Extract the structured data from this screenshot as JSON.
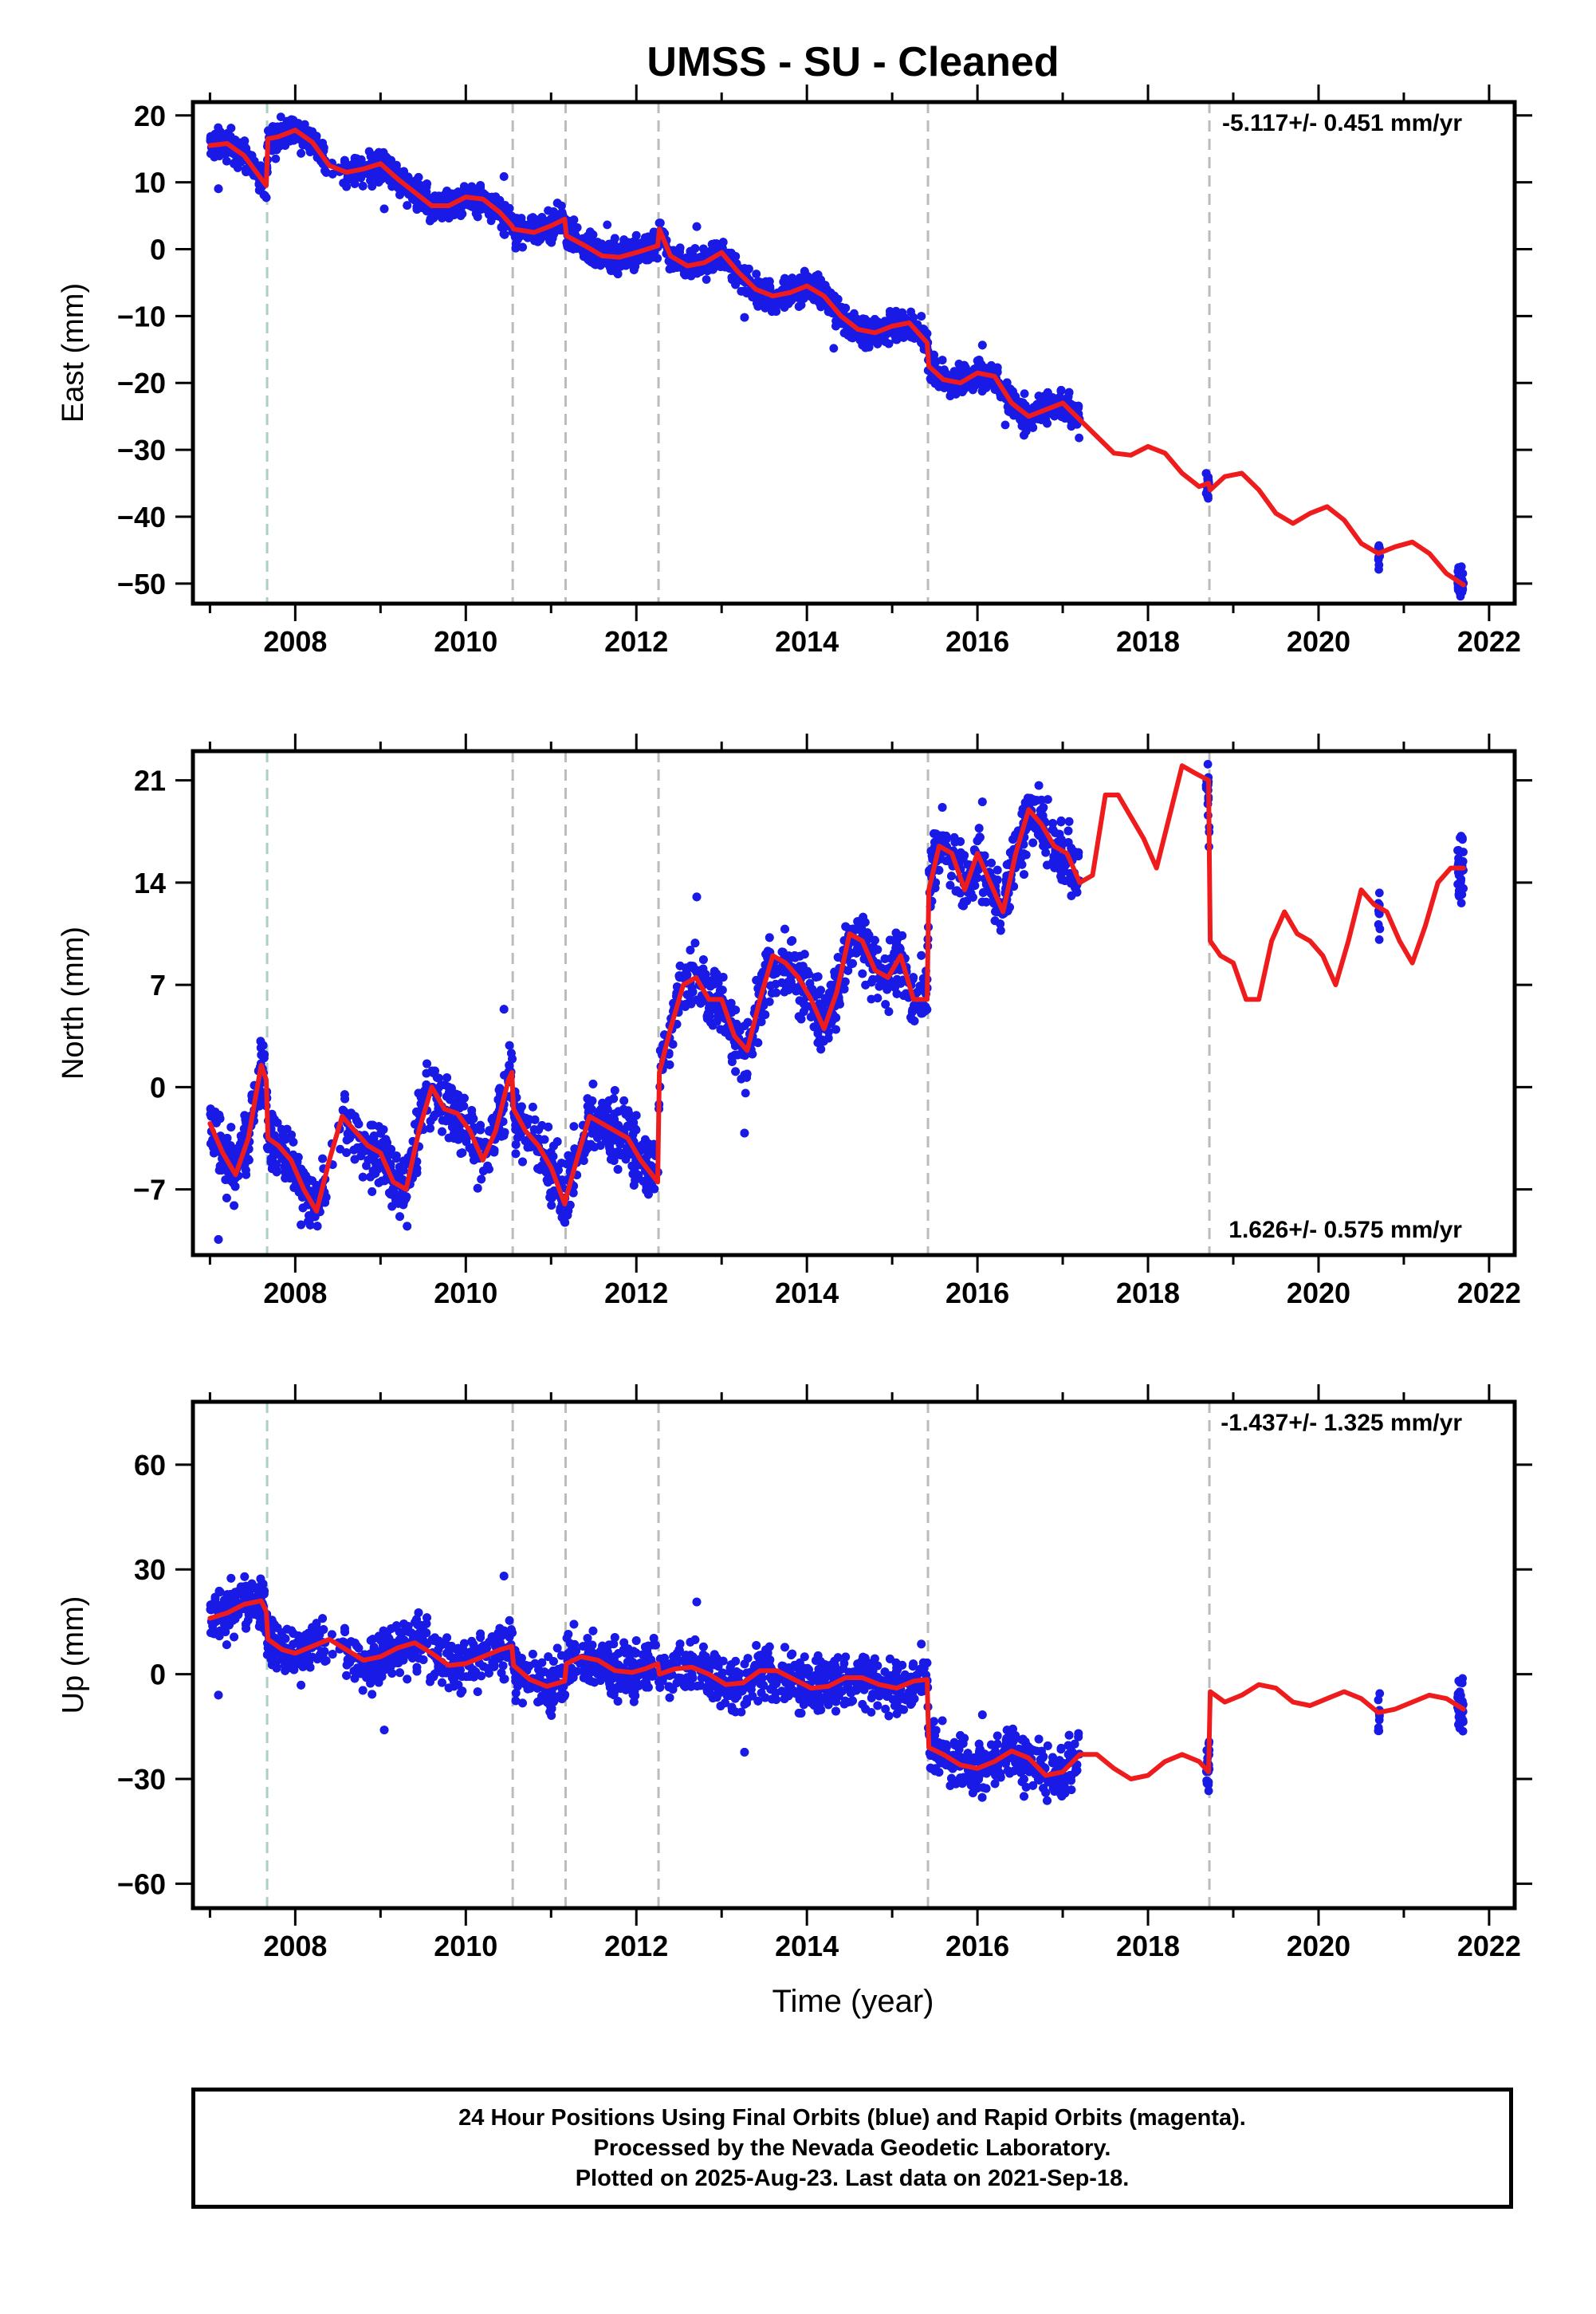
{
  "title": "UMSS  - SU - Cleaned",
  "xlabel": "Time (year)",
  "footer": {
    "line1": "24 Hour Positions Using Final Orbits (blue) and Rapid Orbits (magenta).",
    "line2": "Processed by the Nevada Geodetic Laboratory.",
    "line3": "Plotted on 2025-Aug-23. Last data on 2021-Sep-18."
  },
  "colors": {
    "data": "#1a1ae6",
    "model": "#ee1c1c",
    "step_line": "#bbbbbb",
    "step_line_equip": "#a9cfc6"
  },
  "chart_data": [
    {
      "type": "scatter",
      "id": "east",
      "ylabel": "East (mm)",
      "rate": "-5.117+/- 0.451 mm/yr",
      "rate_position": "top-right",
      "xlim": [
        2006.8,
        2022.3
      ],
      "ylim": [
        -53,
        22
      ],
      "yticks": [
        -50,
        -40,
        -30,
        -20,
        -10,
        0,
        10,
        20
      ],
      "xticks": [
        2008,
        2010,
        2012,
        2014,
        2016,
        2018,
        2020,
        2022
      ],
      "breaks": [
        2007.67,
        2010.55,
        2011.17,
        2012.26,
        2015.42,
        2018.72
      ],
      "series": [
        {
          "role": "model",
          "x": [
            2007.0,
            2007.2,
            2007.4,
            2007.66,
            2007.68,
            2007.8,
            2008.0,
            2008.2,
            2008.4,
            2008.6,
            2008.8,
            2009.0,
            2009.2,
            2009.4,
            2009.6,
            2009.8,
            2010.0,
            2010.2,
            2010.4,
            2010.54,
            2010.56,
            2010.8,
            2011.0,
            2011.16,
            2011.18,
            2011.4,
            2011.6,
            2011.8,
            2012.0,
            2012.25,
            2012.27,
            2012.4,
            2012.6,
            2012.8,
            2013.0,
            2013.2,
            2013.4,
            2013.6,
            2013.8,
            2014.0,
            2014.2,
            2014.4,
            2014.6,
            2014.8,
            2015.0,
            2015.2,
            2015.41,
            2015.43,
            2015.6,
            2015.8,
            2016.0,
            2016.2,
            2016.4,
            2016.6,
            2016.8,
            2017.0,
            2017.2,
            2017.4,
            2017.6,
            2017.8,
            2018.0,
            2018.2,
            2018.4,
            2018.6,
            2018.71,
            2018.73,
            2018.9,
            2019.1,
            2019.3,
            2019.5,
            2019.7,
            2019.9,
            2020.1,
            2020.3,
            2020.5,
            2020.7,
            2020.9,
            2021.1,
            2021.3,
            2021.5,
            2021.7
          ],
          "y": [
            15.5,
            15.8,
            14.0,
            9.5,
            16.5,
            16.8,
            17.8,
            16.0,
            12.5,
            11.5,
            12.0,
            12.8,
            10.5,
            8.5,
            6.5,
            6.5,
            7.8,
            7.5,
            5.5,
            3.5,
            3.0,
            2.5,
            3.5,
            4.5,
            2.0,
            0.5,
            -1.0,
            -1.2,
            -0.5,
            0.5,
            3.0,
            -1.0,
            -2.5,
            -2.0,
            -0.5,
            -3.5,
            -6.0,
            -7.0,
            -6.5,
            -5.5,
            -7.0,
            -10.0,
            -12.0,
            -12.5,
            -11.5,
            -11.0,
            -14.0,
            -17.5,
            -19.5,
            -20.0,
            -18.5,
            -19.0,
            -23.0,
            -25.0,
            -24.0,
            -23.0,
            -25.5,
            -28.0,
            -30.5,
            -30.8,
            -29.5,
            -30.5,
            -33.5,
            -35.5,
            -35.0,
            -36.0,
            -34.0,
            -33.5,
            -36.0,
            -39.5,
            -41.0,
            -39.5,
            -38.5,
            -40.5,
            -44.0,
            -45.5,
            -44.5,
            -43.8,
            -45.5,
            -48.5,
            -50.2
          ]
        }
      ]
    },
    {
      "type": "scatter",
      "id": "north",
      "ylabel": "North (mm)",
      "rate": "1.626+/- 0.575 mm/yr",
      "rate_position": "bottom-right",
      "xlim": [
        2006.8,
        2022.3
      ],
      "ylim": [
        -11.5,
        23
      ],
      "yticks": [
        -7,
        0,
        7,
        14,
        21
      ],
      "xticks": [
        2008,
        2010,
        2012,
        2014,
        2016,
        2018,
        2020,
        2022
      ],
      "breaks": [
        2007.67,
        2010.55,
        2011.17,
        2012.26,
        2015.42,
        2018.72
      ],
      "series": [
        {
          "role": "model",
          "x": [
            2007.0,
            2007.15,
            2007.3,
            2007.45,
            2007.6,
            2007.66,
            2007.68,
            2007.8,
            2007.95,
            2008.1,
            2008.25,
            2008.4,
            2008.55,
            2008.7,
            2008.85,
            2009.0,
            2009.15,
            2009.3,
            2009.45,
            2009.6,
            2009.75,
            2009.9,
            2010.05,
            2010.2,
            2010.35,
            2010.5,
            2010.54,
            2010.56,
            2010.7,
            2010.85,
            2011.0,
            2011.16,
            2011.18,
            2011.3,
            2011.45,
            2011.6,
            2011.75,
            2011.9,
            2012.05,
            2012.25,
            2012.27,
            2012.4,
            2012.55,
            2012.7,
            2012.85,
            2013.0,
            2013.15,
            2013.3,
            2013.45,
            2013.6,
            2013.75,
            2013.9,
            2014.05,
            2014.2,
            2014.35,
            2014.5,
            2014.65,
            2014.8,
            2014.95,
            2015.1,
            2015.25,
            2015.41,
            2015.43,
            2015.55,
            2015.7,
            2015.85,
            2016.0,
            2016.15,
            2016.3,
            2016.45,
            2016.6,
            2016.75,
            2016.9,
            2017.05,
            2017.2,
            2017.35,
            2017.5,
            2017.65,
            2017.8,
            2017.95,
            2018.1,
            2018.25,
            2018.4,
            2018.55,
            2018.71,
            2018.73,
            2018.85,
            2019.0,
            2019.15,
            2019.3,
            2019.45,
            2019.6,
            2019.75,
            2019.9,
            2020.05,
            2020.2,
            2020.35,
            2020.5,
            2020.65,
            2020.8,
            2020.95,
            2021.1,
            2021.25,
            2021.4,
            2021.55,
            2021.7
          ],
          "y": [
            -2.5,
            -4.5,
            -6.0,
            -3.5,
            1.5,
            0.5,
            -3.5,
            -4.0,
            -5.0,
            -7.0,
            -8.5,
            -5.0,
            -2.0,
            -3.0,
            -4.0,
            -4.5,
            -6.5,
            -7.0,
            -3.0,
            0.0,
            -1.5,
            -1.8,
            -3.0,
            -5.0,
            -3.0,
            0.5,
            1.0,
            -1.5,
            -3.0,
            -4.0,
            -5.5,
            -8.0,
            -7.5,
            -5.0,
            -2.0,
            -2.5,
            -3.0,
            -3.5,
            -5.0,
            -6.5,
            1.0,
            4.0,
            7.0,
            7.5,
            6.0,
            6.0,
            3.5,
            2.5,
            6.0,
            9.0,
            8.5,
            7.5,
            6.0,
            4.0,
            6.5,
            10.5,
            10.0,
            8.0,
            7.5,
            9.0,
            6.0,
            6.0,
            13.5,
            16.5,
            16.0,
            13.5,
            16.0,
            14.0,
            12.0,
            16.0,
            19.0,
            18.0,
            16.5,
            16.0,
            14.0,
            14.5,
            20.0,
            20.0,
            18.5,
            17.0,
            15.0,
            18.5,
            22.0,
            21.5,
            21.0,
            10.0,
            9.0,
            8.5,
            6.0,
            6.0,
            10.0,
            12.0,
            10.5,
            10.0,
            9.0,
            7.0,
            10.0,
            13.5,
            12.5,
            12.0,
            10.0,
            8.5,
            11.0,
            14.0,
            15.0,
            15.0
          ]
        }
      ]
    },
    {
      "type": "scatter",
      "id": "up",
      "ylabel": "Up (mm)",
      "rate": "-1.437+/- 1.325 mm/yr",
      "rate_position": "top-right",
      "xlim": [
        2006.8,
        2022.3
      ],
      "ylim": [
        -67,
        78
      ],
      "yticks": [
        -60,
        -30,
        0,
        30,
        60
      ],
      "xticks": [
        2008,
        2010,
        2012,
        2014,
        2016,
        2018,
        2020,
        2022
      ],
      "breaks": [
        2007.67,
        2010.55,
        2011.17,
        2012.26,
        2015.42,
        2018.72
      ],
      "series": [
        {
          "role": "model",
          "x": [
            2007.0,
            2007.2,
            2007.4,
            2007.6,
            2007.66,
            2007.68,
            2007.85,
            2008.0,
            2008.2,
            2008.4,
            2008.6,
            2008.8,
            2009.0,
            2009.2,
            2009.4,
            2009.6,
            2009.8,
            2010.0,
            2010.2,
            2010.4,
            2010.54,
            2010.56,
            2010.75,
            2010.95,
            2011.16,
            2011.18,
            2011.35,
            2011.55,
            2011.75,
            2011.95,
            2012.1,
            2012.25,
            2012.27,
            2012.45,
            2012.65,
            2012.85,
            2013.05,
            2013.25,
            2013.45,
            2013.65,
            2013.85,
            2014.05,
            2014.25,
            2014.45,
            2014.65,
            2014.85,
            2015.05,
            2015.25,
            2015.41,
            2015.43,
            2015.6,
            2015.8,
            2016.0,
            2016.2,
            2016.4,
            2016.6,
            2016.8,
            2017.0,
            2017.2,
            2017.4,
            2017.6,
            2017.8,
            2018.0,
            2018.2,
            2018.4,
            2018.6,
            2018.71,
            2018.73,
            2018.9,
            2019.1,
            2019.3,
            2019.5,
            2019.7,
            2019.9,
            2020.1,
            2020.3,
            2020.5,
            2020.7,
            2020.9,
            2021.1,
            2021.3,
            2021.5,
            2021.7
          ],
          "y": [
            16.0,
            17.5,
            20.0,
            21.0,
            18.0,
            10.0,
            7.0,
            6.0,
            8.0,
            10.0,
            7.0,
            4.0,
            5.0,
            7.5,
            9.0,
            6.0,
            2.5,
            3.0,
            5.0,
            7.0,
            8.0,
            2.5,
            -1.5,
            -3.5,
            -2.0,
            3.0,
            5.0,
            4.0,
            1.0,
            0.5,
            1.5,
            3.0,
            0.0,
            1.5,
            2.0,
            0.0,
            -3.0,
            -2.5,
            1.0,
            1.0,
            -1.5,
            -4.0,
            -3.5,
            -1.0,
            -1.0,
            -3.0,
            -4.0,
            -2.0,
            -1.5,
            -21.0,
            -23.0,
            -26.0,
            -27.0,
            -25.0,
            -22.0,
            -24.0,
            -29.0,
            -28.0,
            -23.0,
            -23.0,
            -27.0,
            -30.0,
            -29.0,
            -25.0,
            -23.0,
            -25.0,
            -28.0,
            -5.0,
            -8.0,
            -6.0,
            -3.0,
            -4.0,
            -8.0,
            -9.0,
            -7.0,
            -5.0,
            -7.0,
            -11.0,
            -10.0,
            -8.0,
            -6.0,
            -7.0,
            -10.0
          ]
        }
      ]
    }
  ]
}
